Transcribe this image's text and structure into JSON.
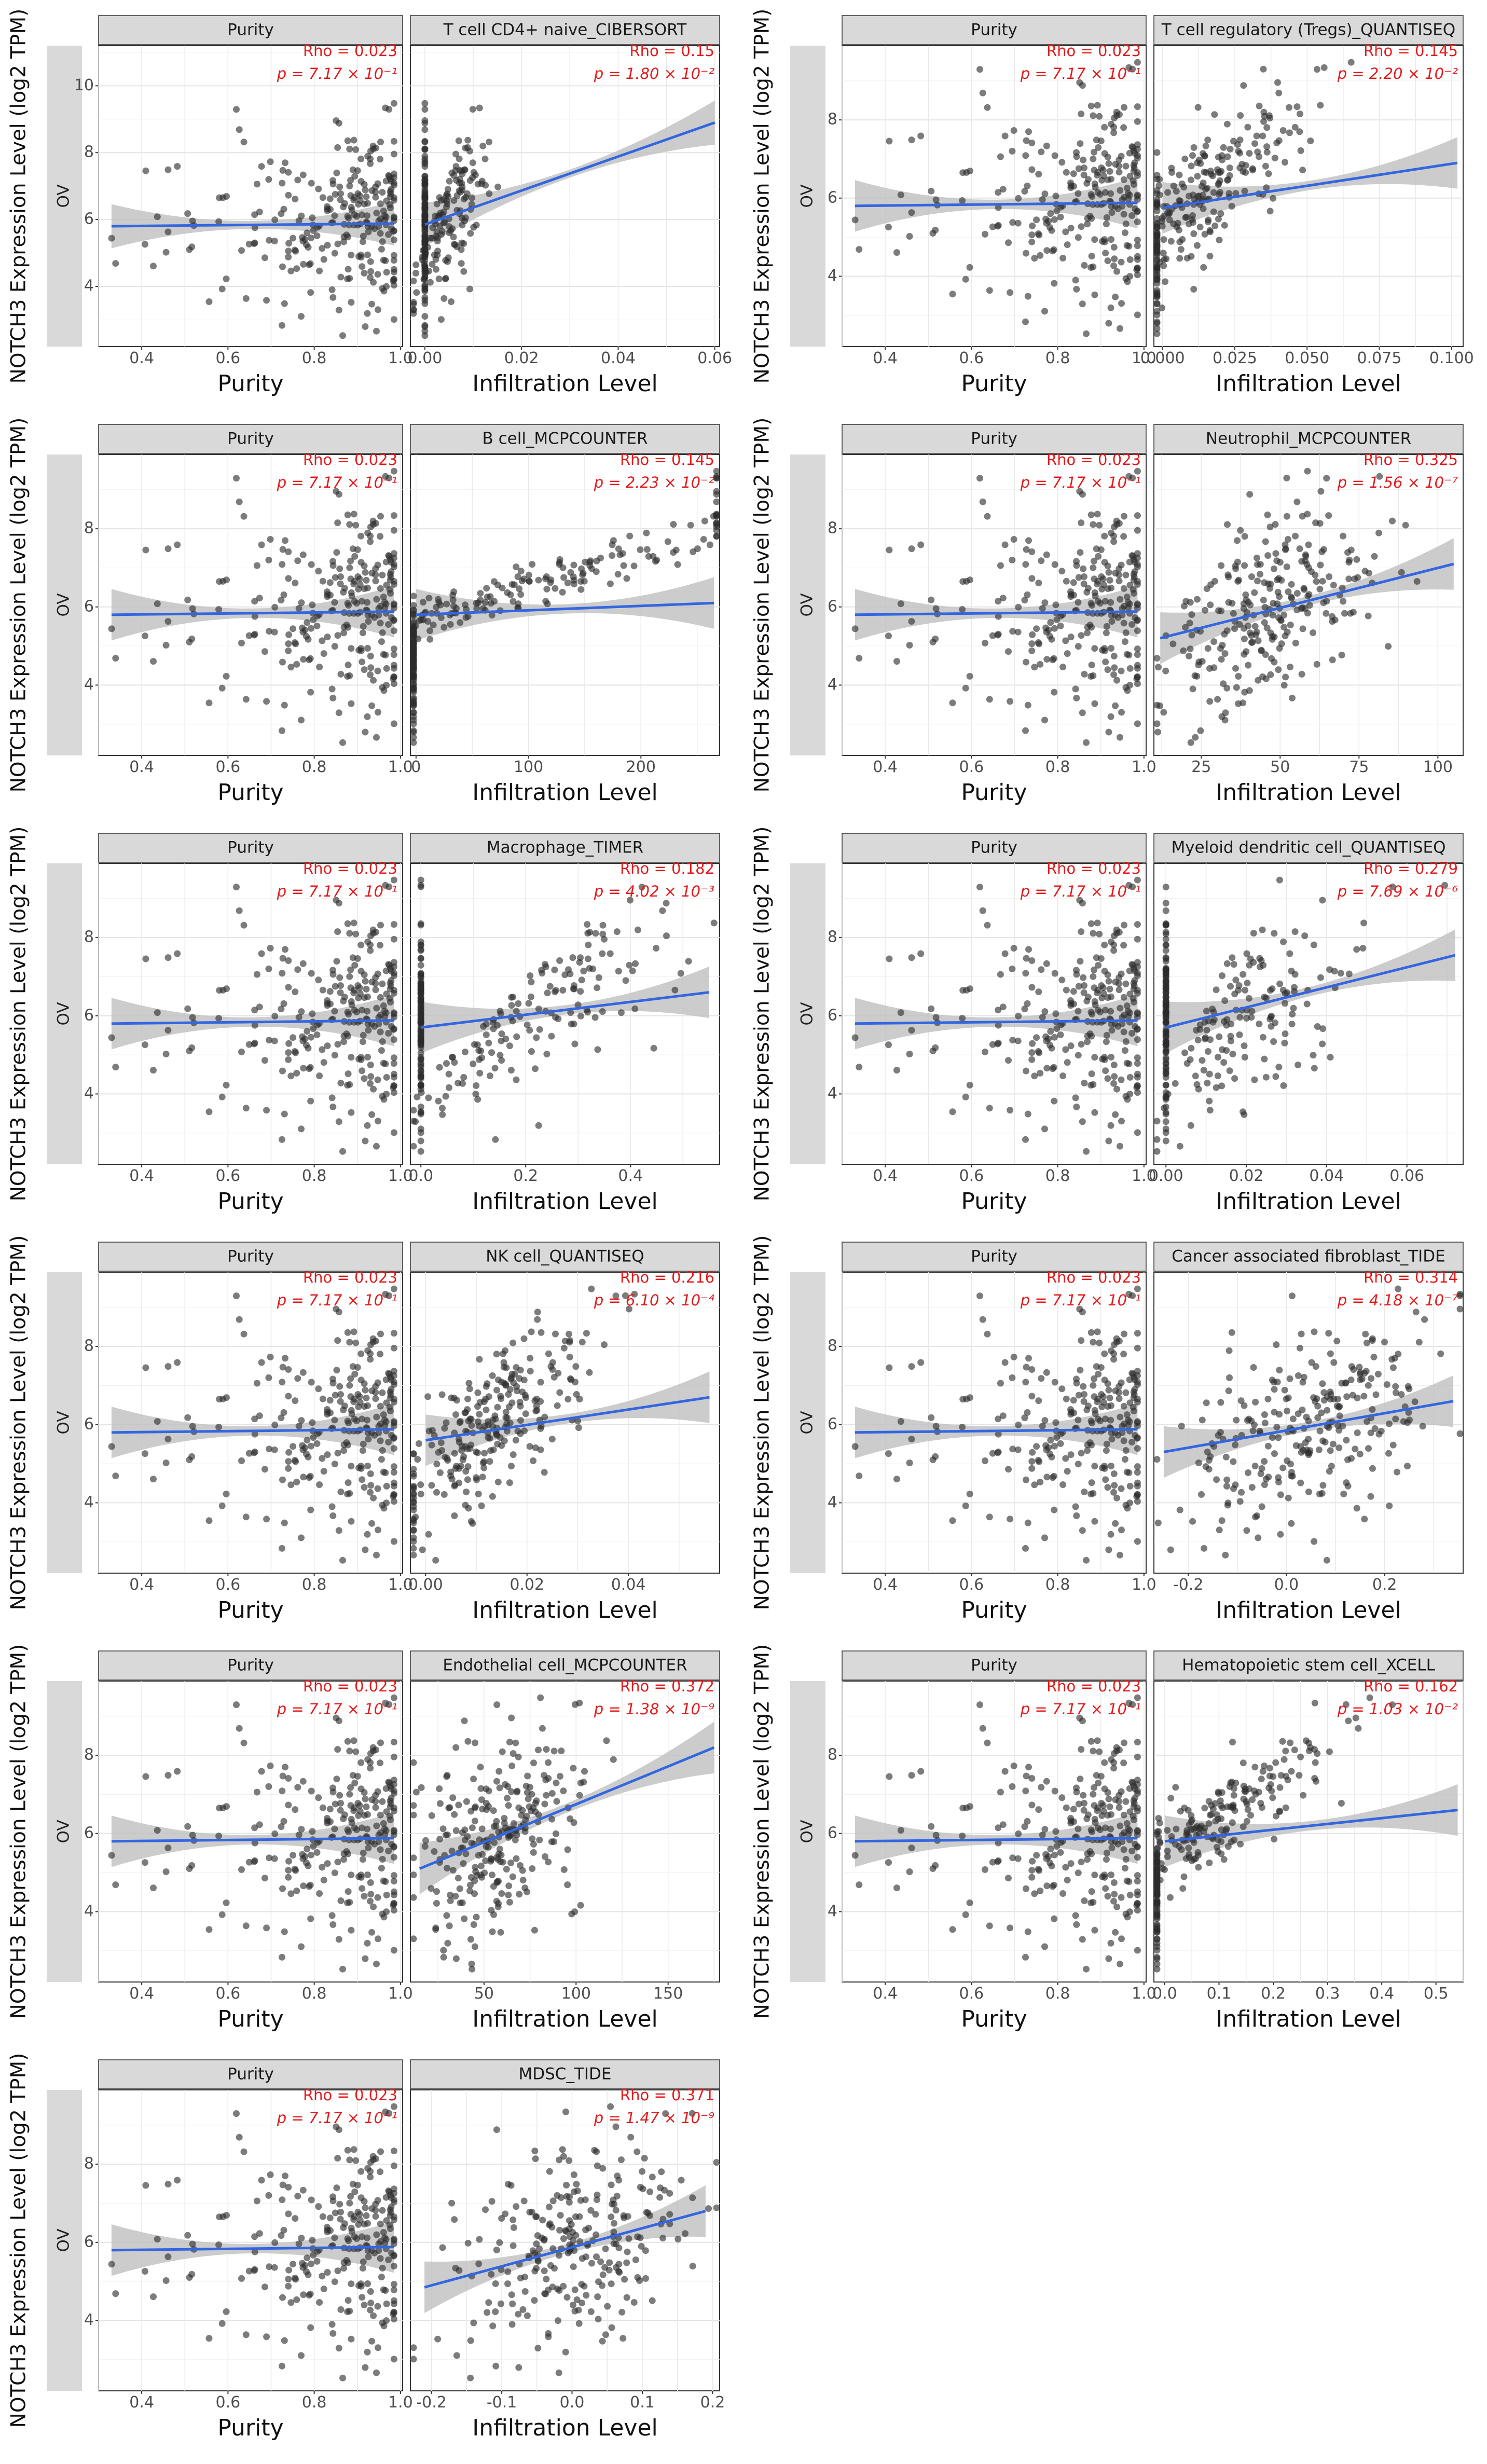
{
  "common": {
    "y_axis_label": "NOTCH3 Expression Level (log2 TPM)",
    "side_strip_label": "OV",
    "purity_panel_title": "Purity",
    "purity_x_label": "Purity",
    "infiltration_x_label": "Infiltration Level",
    "purity_rho": "Rho = 0.023",
    "purity_p": "p = 7.17 × 10⁻¹",
    "purity_x_ticks": [
      "0.4",
      "0.6",
      "0.8",
      "1.0"
    ],
    "y_ticks": [
      "4",
      "6",
      "8"
    ],
    "colors": {
      "point": "#2b2b2b",
      "line": "#3366e0",
      "band": "#bfbfbf",
      "stat_text": "#e41a1c",
      "strip": "#d9d9d9"
    }
  },
  "chart_data": [
    {
      "type": "scatter",
      "title": "T cell CD4+ naive_CIBERSORT",
      "rho": "Rho = 0.15",
      "p": "p = 1.80 × 10⁻²",
      "xlim": [
        -0.003,
        0.061
      ],
      "x_ticks": [
        "0.00",
        "0.02",
        "0.04",
        "0.06"
      ],
      "x_tick_values": [
        0,
        0.02,
        0.04,
        0.06
      ],
      "y_ticks": [
        "4",
        "6",
        "8",
        "10"
      ],
      "ylim": [
        2.2,
        11.2
      ],
      "fit": [
        [
          0,
          5.85
        ],
        [
          0.06,
          8.9
        ]
      ],
      "spread": 0.004,
      "zero_inflated": true,
      "x_center": 0.001
    },
    {
      "type": "scatter",
      "title": "T cell regulatory (Tregs)_QUANTISEQ",
      "rho": "Rho = 0.145",
      "p": "p = 2.20 × 10⁻²",
      "xlim": [
        -0.003,
        0.104
      ],
      "x_ticks": [
        "0.000",
        "0.025",
        "0.050",
        "0.075",
        "0.100"
      ],
      "x_tick_values": [
        0,
        0.025,
        0.05,
        0.075,
        0.1
      ],
      "y_ticks": [
        "4",
        "6",
        "8"
      ],
      "ylim": [
        2.2,
        9.9
      ],
      "fit": [
        [
          0,
          5.75
        ],
        [
          0.102,
          6.9
        ]
      ],
      "spread": 0.012,
      "zero_inflated": false,
      "x_center": 0.01
    },
    {
      "type": "scatter",
      "title": "B cell_MCPCOUNTER",
      "rho": "Rho = 0.145",
      "p": "p = 2.23 × 10⁻²",
      "xlim": [
        -5,
        270
      ],
      "x_ticks": [
        "0",
        "100",
        "200"
      ],
      "x_tick_values": [
        0,
        100,
        200
      ],
      "y_ticks": [
        "4",
        "6",
        "8"
      ],
      "ylim": [
        2.2,
        9.9
      ],
      "fit": [
        [
          0,
          5.8
        ],
        [
          265,
          6.1
        ]
      ],
      "spread": 30,
      "zero_inflated": false,
      "x_center": 30
    },
    {
      "type": "scatter",
      "title": "Neutrophil_MCPCOUNTER",
      "rho": "Rho = 0.325",
      "p": "p = 1.56 × 10⁻⁷",
      "xlim": [
        10,
        108
      ],
      "x_ticks": [
        "25",
        "50",
        "75",
        "100"
      ],
      "x_tick_values": [
        25,
        50,
        75,
        100
      ],
      "y_ticks": [
        "4",
        "6",
        "8"
      ],
      "ylim": [
        2.2,
        9.9
      ],
      "fit": [
        [
          12,
          5.2
        ],
        [
          105,
          7.1
        ]
      ],
      "spread": 15,
      "zero_inflated": false,
      "x_center": 47
    },
    {
      "type": "scatter",
      "title": "Macrophage_TIMER",
      "rho": "Rho = 0.182",
      "p": "p = 4.02 × 10⁻³",
      "xlim": [
        -0.02,
        0.57
      ],
      "x_ticks": [
        "0.0",
        "0.2",
        "0.4"
      ],
      "x_tick_values": [
        0,
        0.2,
        0.4
      ],
      "y_ticks": [
        "4",
        "6",
        "8"
      ],
      "ylim": [
        2.2,
        9.9
      ],
      "fit": [
        [
          0,
          5.7
        ],
        [
          0.55,
          6.6
        ]
      ],
      "spread": 0.1,
      "zero_inflated": true,
      "x_center": 0.12
    },
    {
      "type": "scatter",
      "title": "Myeloid dendritic cell_QUANTISEQ",
      "rho": "Rho = 0.279",
      "p": "p = 7.69 × 10⁻⁶",
      "xlim": [
        -0.003,
        0.074
      ],
      "x_ticks": [
        "0.00",
        "0.02",
        "0.04",
        "0.06"
      ],
      "x_tick_values": [
        0,
        0.02,
        0.04,
        0.06
      ],
      "y_ticks": [
        "4",
        "6",
        "8"
      ],
      "ylim": [
        2.2,
        9.9
      ],
      "fit": [
        [
          0,
          5.7
        ],
        [
          0.072,
          7.55
        ]
      ],
      "spread": 0.012,
      "zero_inflated": true,
      "x_center": 0.008
    },
    {
      "type": "scatter",
      "title": "NK cell_QUANTISEQ",
      "rho": "Rho = 0.216",
      "p": "p = 6.10 × 10⁻⁴",
      "xlim": [
        -0.003,
        0.058
      ],
      "x_ticks": [
        "0.00",
        "0.02",
        "0.04"
      ],
      "x_tick_values": [
        0,
        0.02,
        0.04
      ],
      "y_ticks": [
        "4",
        "6",
        "8"
      ],
      "ylim": [
        2.2,
        9.9
      ],
      "fit": [
        [
          0,
          5.6
        ],
        [
          0.056,
          6.7
        ]
      ],
      "spread": 0.007,
      "zero_inflated": false,
      "x_center": 0.012
    },
    {
      "type": "scatter",
      "title": "Cancer associated fibroblast_TIDE",
      "rho": "Rho = 0.314",
      "p": "p = 4.18 × 10⁻⁷",
      "xlim": [
        -0.27,
        0.36
      ],
      "x_ticks": [
        "-0.2",
        "0.0",
        "0.2"
      ],
      "x_tick_values": [
        -0.2,
        0,
        0.2
      ],
      "y_ticks": [
        "4",
        "6",
        "8"
      ],
      "ylim": [
        2.2,
        9.9
      ],
      "fit": [
        [
          -0.25,
          5.3
        ],
        [
          0.34,
          6.6
        ]
      ],
      "spread": 0.12,
      "zero_inflated": false,
      "x_center": 0.03
    },
    {
      "type": "scatter",
      "title": "Endothelial cell_MCPCOUNTER",
      "rho": "Rho = 0.372",
      "p": "p = 1.38 × 10⁻⁹",
      "xlim": [
        10,
        178
      ],
      "x_ticks": [
        "50",
        "100",
        "150"
      ],
      "x_tick_values": [
        50,
        100,
        150
      ],
      "y_ticks": [
        "4",
        "6",
        "8"
      ],
      "ylim": [
        2.2,
        9.9
      ],
      "fit": [
        [
          15,
          5.1
        ],
        [
          175,
          8.2
        ]
      ],
      "spread": 22,
      "zero_inflated": false,
      "x_center": 55
    },
    {
      "type": "scatter",
      "title": "Hematopoietic stem cell_XCELL",
      "rho": "Rho = 0.162",
      "p": "p = 1.03 × 10⁻²",
      "xlim": [
        -0.02,
        0.55
      ],
      "x_ticks": [
        "0.0",
        "0.1",
        "0.2",
        "0.3",
        "0.4",
        "0.5"
      ],
      "x_tick_values": [
        0,
        0.1,
        0.2,
        0.3,
        0.4,
        0.5
      ],
      "y_ticks": [
        "4",
        "6",
        "8"
      ],
      "ylim": [
        2.2,
        9.9
      ],
      "fit": [
        [
          0,
          5.8
        ],
        [
          0.54,
          6.6
        ]
      ],
      "spread": 0.05,
      "zero_inflated": false,
      "x_center": 0.05
    },
    {
      "type": "scatter",
      "title": "MDSC_TIDE",
      "rho": "Rho = 0.371",
      "p": "p = 1.47 × 10⁻⁹",
      "xlim": [
        -0.23,
        0.21
      ],
      "x_ticks": [
        "-0.2",
        "-0.1",
        "0.0",
        "0.1",
        "0.2"
      ],
      "x_tick_values": [
        -0.2,
        -0.1,
        0,
        0.1,
        0.2
      ],
      "y_ticks": [
        "4",
        "6",
        "8"
      ],
      "ylim": [
        2.2,
        9.9
      ],
      "fit": [
        [
          -0.21,
          4.85
        ],
        [
          0.19,
          6.8
        ]
      ],
      "spread": 0.08,
      "zero_inflated": false,
      "x_center": -0.01
    }
  ]
}
